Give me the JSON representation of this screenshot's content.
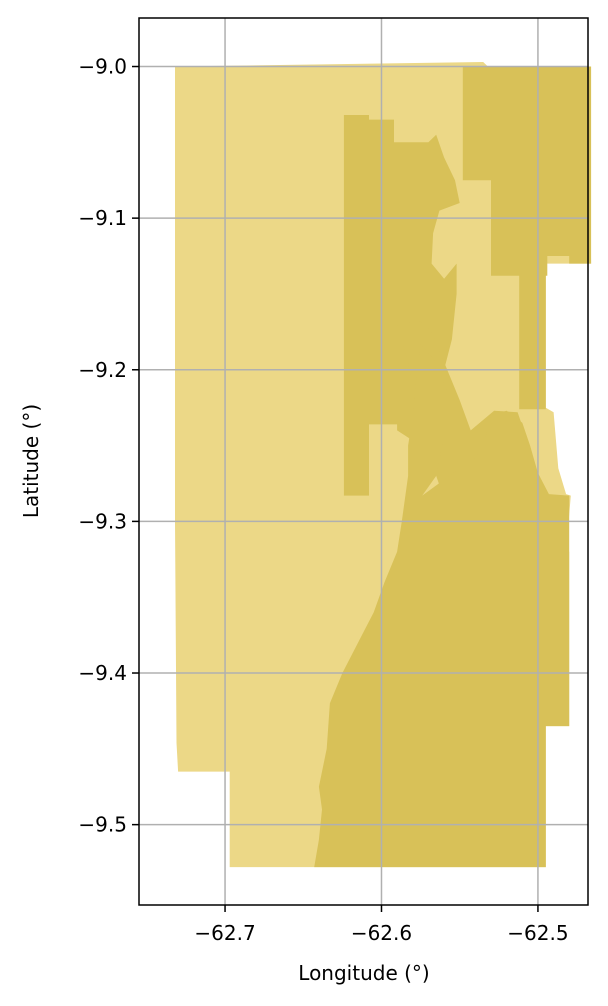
{
  "chart_data": {
    "type": "map",
    "xlabel": "Longitude (°)",
    "ylabel": "Latitude (°)",
    "xlim": [
      -62.755,
      -62.468
    ],
    "ylim": [
      -9.553,
      -8.968
    ],
    "grid": true,
    "x_ticks": [
      {
        "value": -62.7,
        "label": "−62.7"
      },
      {
        "value": -62.6,
        "label": "−62.6"
      },
      {
        "value": -62.5,
        "label": "−62.5"
      }
    ],
    "y_ticks": [
      {
        "value": -9.0,
        "label": "−9.0"
      },
      {
        "value": -9.1,
        "label": "−9.1"
      },
      {
        "value": -9.2,
        "label": "−9.2"
      },
      {
        "value": -9.3,
        "label": "−9.3"
      },
      {
        "value": -9.4,
        "label": "−9.4"
      },
      {
        "value": -9.5,
        "label": "−9.5"
      }
    ],
    "colors": {
      "light_region": "#ecd887",
      "dark_region": "#d8c158",
      "grid": "#b0b0b0"
    },
    "regions": [
      {
        "category": "light",
        "polygon": [
          [
            -62.732,
            -9.0
          ],
          [
            -62.535,
            -8.997
          ],
          [
            -62.532,
            -9.0
          ],
          [
            -62.468,
            -9.0
          ],
          [
            -62.466,
            -9.13
          ],
          [
            -62.495,
            -9.13
          ],
          [
            -62.495,
            -9.225
          ],
          [
            -62.49,
            -9.228
          ],
          [
            -62.487,
            -9.265
          ],
          [
            -62.482,
            -9.282
          ],
          [
            -62.479,
            -9.283
          ],
          [
            -62.482,
            -9.32
          ],
          [
            -62.48,
            -9.32
          ],
          [
            -62.48,
            -9.435
          ],
          [
            -62.495,
            -9.435
          ],
          [
            -62.495,
            -9.528
          ],
          [
            -62.697,
            -9.528
          ],
          [
            -62.697,
            -9.465
          ],
          [
            -62.73,
            -9.465
          ],
          [
            -62.731,
            -9.446
          ],
          [
            -62.732,
            -9.3
          ]
        ]
      },
      {
        "category": "dark",
        "polygon": [
          [
            -62.548,
            -9.0
          ],
          [
            -62.466,
            -9.0
          ],
          [
            -62.466,
            -9.13
          ],
          [
            -62.48,
            -9.13
          ],
          [
            -62.48,
            -9.125
          ],
          [
            -62.494,
            -9.125
          ],
          [
            -62.494,
            -9.138
          ],
          [
            -62.512,
            -9.138
          ],
          [
            -62.512,
            -9.226
          ],
          [
            -62.495,
            -9.226
          ],
          [
            -62.495,
            -9.138
          ],
          [
            -62.53,
            -9.138
          ],
          [
            -62.53,
            -9.075
          ],
          [
            -62.548,
            -9.075
          ]
        ]
      },
      {
        "category": "dark",
        "polygon": [
          [
            -62.624,
            -9.032
          ],
          [
            -62.608,
            -9.032
          ],
          [
            -62.608,
            -9.035
          ],
          [
            -62.592,
            -9.035
          ],
          [
            -62.592,
            -9.05
          ],
          [
            -62.57,
            -9.05
          ],
          [
            -62.565,
            -9.045
          ],
          [
            -62.56,
            -9.06
          ],
          [
            -62.553,
            -9.075
          ],
          [
            -62.55,
            -9.09
          ],
          [
            -62.563,
            -9.095
          ],
          [
            -62.567,
            -9.11
          ],
          [
            -62.568,
            -9.13
          ],
          [
            -62.56,
            -9.14
          ],
          [
            -62.552,
            -9.13
          ],
          [
            -62.552,
            -9.15
          ],
          [
            -62.555,
            -9.18
          ],
          [
            -62.56,
            -9.2
          ],
          [
            -62.565,
            -9.23
          ],
          [
            -62.575,
            -9.25
          ],
          [
            -62.59,
            -9.24
          ],
          [
            -62.59,
            -9.236
          ],
          [
            -62.608,
            -9.236
          ],
          [
            -62.608,
            -9.283
          ],
          [
            -62.624,
            -9.283
          ]
        ]
      },
      {
        "category": "dark",
        "polygon": [
          [
            -62.59,
            -9.17
          ],
          [
            -62.583,
            -9.195
          ],
          [
            -62.578,
            -9.225
          ],
          [
            -62.573,
            -9.252
          ],
          [
            -62.565,
            -9.27
          ],
          [
            -62.56,
            -9.285
          ],
          [
            -62.543,
            -9.295
          ],
          [
            -62.53,
            -9.283
          ],
          [
            -62.52,
            -9.26
          ],
          [
            -62.515,
            -9.25
          ],
          [
            -62.51,
            -9.237
          ],
          [
            -62.513,
            -9.228
          ],
          [
            -62.528,
            -9.227
          ],
          [
            -62.543,
            -9.24
          ],
          [
            -62.55,
            -9.22
          ],
          [
            -62.56,
            -9.195
          ],
          [
            -62.568,
            -9.175
          ],
          [
            -62.575,
            -9.168
          ]
        ]
      },
      {
        "category": "dark",
        "polygon": [
          [
            -62.575,
            -9.183
          ],
          [
            -62.565,
            -9.195
          ],
          [
            -62.558,
            -9.215
          ],
          [
            -62.56,
            -9.243
          ],
          [
            -62.565,
            -9.27
          ],
          [
            -62.574,
            -9.283
          ],
          [
            -62.55,
            -9.265
          ],
          [
            -62.54,
            -9.258
          ],
          [
            -62.535,
            -9.25
          ],
          [
            -62.53,
            -9.23
          ],
          [
            -62.52,
            -9.227
          ],
          [
            -62.51,
            -9.235
          ],
          [
            -62.505,
            -9.25
          ],
          [
            -62.5,
            -9.268
          ],
          [
            -62.493,
            -9.282
          ],
          [
            -62.48,
            -9.283
          ],
          [
            -62.48,
            -9.435
          ],
          [
            -62.495,
            -9.435
          ],
          [
            -62.495,
            -9.528
          ],
          [
            -62.643,
            -9.528
          ],
          [
            -62.64,
            -9.51
          ],
          [
            -62.638,
            -9.49
          ],
          [
            -62.64,
            -9.475
          ],
          [
            -62.635,
            -9.45
          ],
          [
            -62.633,
            -9.42
          ],
          [
            -62.625,
            -9.4
          ],
          [
            -62.615,
            -9.38
          ],
          [
            -62.605,
            -9.36
          ],
          [
            -62.598,
            -9.34
          ],
          [
            -62.59,
            -9.32
          ],
          [
            -62.587,
            -9.3
          ],
          [
            -62.583,
            -9.27
          ],
          [
            -62.583,
            -9.25
          ],
          [
            -62.58,
            -9.23
          ],
          [
            -62.578,
            -9.21
          ]
        ]
      }
    ]
  }
}
